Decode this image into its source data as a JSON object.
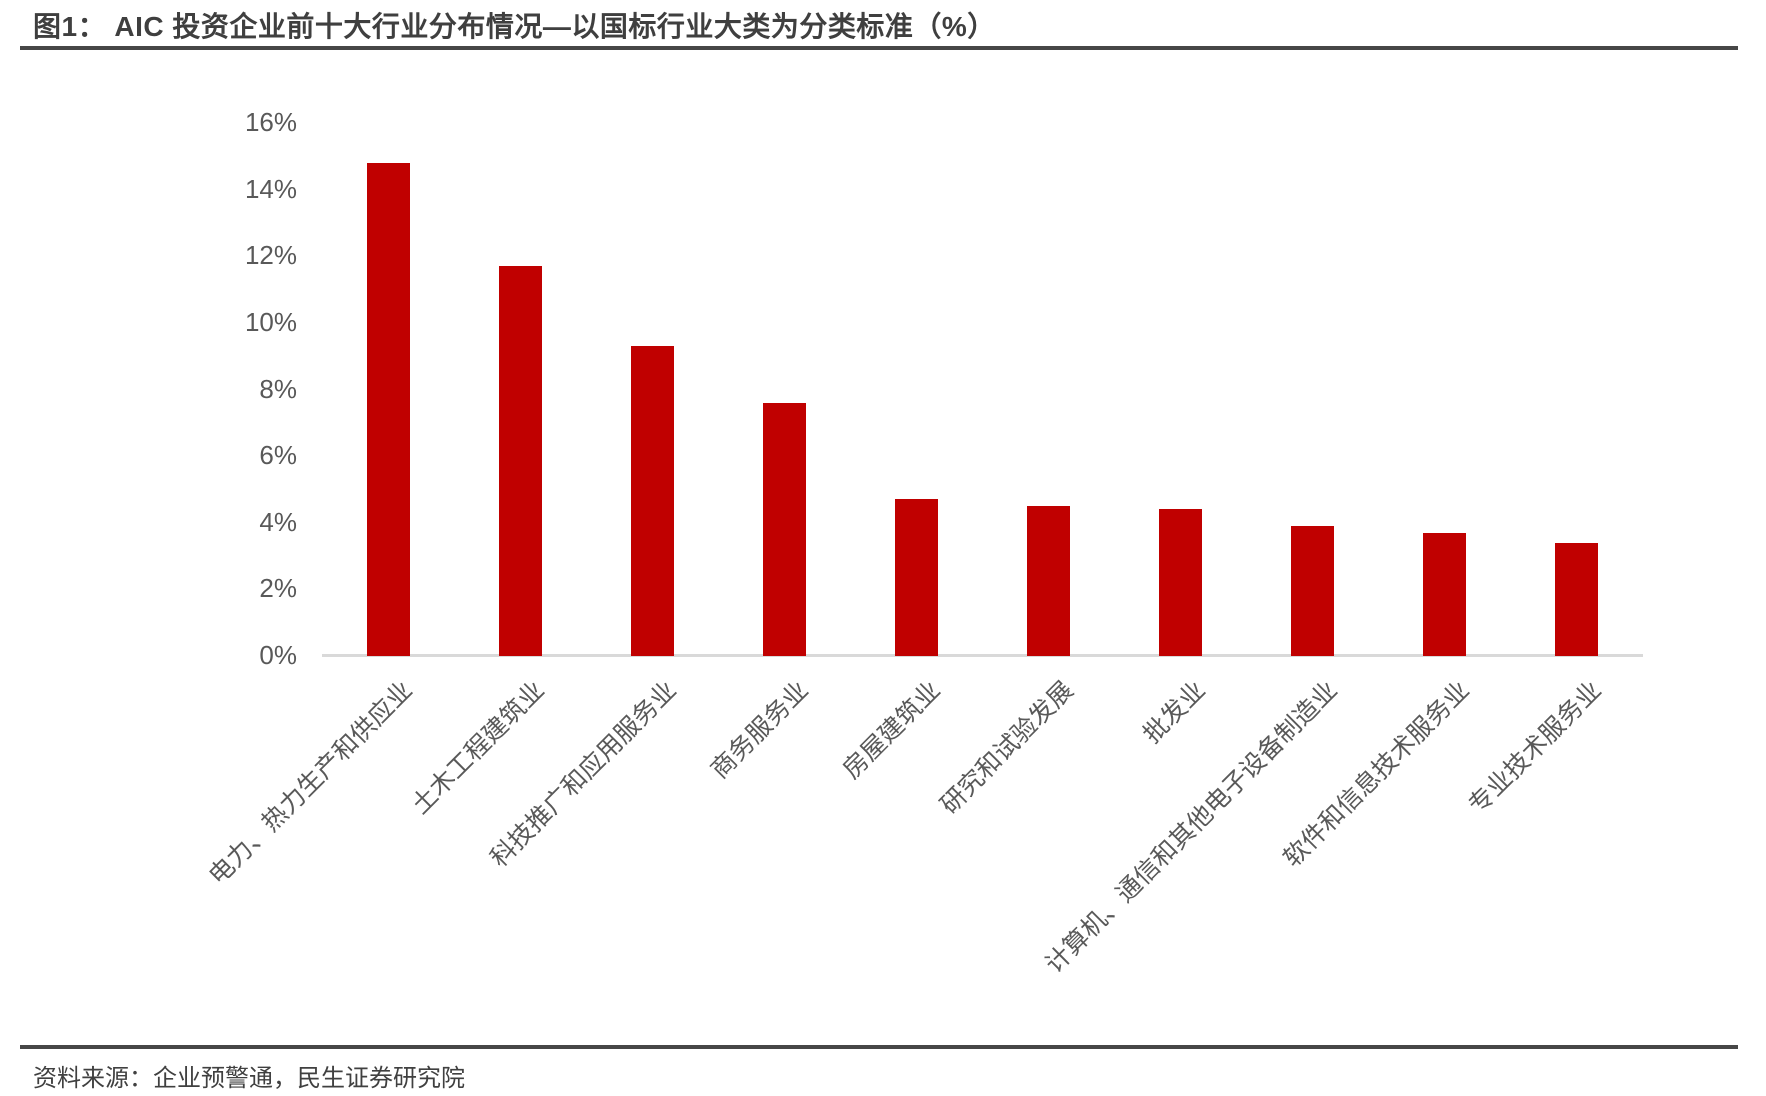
{
  "header": {
    "title": "图1： AIC 投资企业前十大行业分布情况—以国标行业大类为分类标准（%）"
  },
  "footer": {
    "source": "资料来源：企业预警通，民生证券研究院"
  },
  "colors": {
    "bar": "#c00000",
    "axis_line": "#d9d9d9",
    "tick_text": "#595959",
    "rule": "#474747",
    "title_text": "#3f3f3f"
  },
  "chart_data": {
    "type": "bar",
    "title": "AIC 投资企业前十大行业分布情况—以国标行业大类为分类标准（%）",
    "categories": [
      "电力、热力生产和供应业",
      "土木工程建筑业",
      "科技推广和应用服务业",
      "商务服务业",
      "房屋建筑业",
      "研究和试验发展",
      "批发业",
      "计算机、通信和其他电子设备制造业",
      "软件和信息技术服务业",
      "专业技术服务业"
    ],
    "values": [
      14.8,
      11.7,
      9.3,
      7.6,
      4.7,
      4.5,
      4.4,
      3.9,
      3.7,
      3.4
    ],
    "xlabel": "",
    "ylabel": "",
    "ylim": [
      0,
      16
    ],
    "yticks": [
      {
        "value": 0,
        "label": "0%"
      },
      {
        "value": 2,
        "label": "2%"
      },
      {
        "value": 4,
        "label": "4%"
      },
      {
        "value": 6,
        "label": "6%"
      },
      {
        "value": 8,
        "label": "8%"
      },
      {
        "value": 10,
        "label": "10%"
      },
      {
        "value": 12,
        "label": "12%"
      },
      {
        "value": 14,
        "label": "14%"
      },
      {
        "value": 16,
        "label": "16%"
      }
    ],
    "grid": false,
    "legend_position": "none",
    "bar_color": "#c00000"
  }
}
